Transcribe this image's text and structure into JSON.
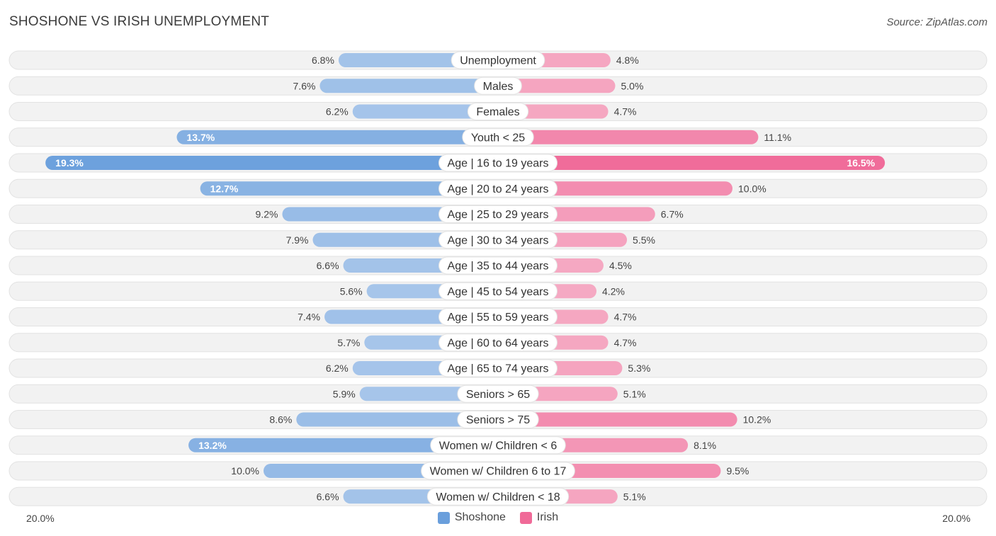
{
  "title": "SHOSHONE VS IRISH UNEMPLOYMENT",
  "source": "Source: ZipAtlas.com",
  "colors": {
    "shoshone": "#6a9fdc",
    "shoshone_light": "#a6c5ea",
    "irish": "#f06a98",
    "irish_light": "#f5a9c3"
  },
  "chart_data": {
    "type": "bar",
    "orientation": "horizontal-diverging",
    "title": "SHOSHONE VS IRISH UNEMPLOYMENT",
    "categories": [
      "Unemployment",
      "Males",
      "Females",
      "Youth < 25",
      "Age | 16 to 19 years",
      "Age | 20 to 24 years",
      "Age | 25 to 29 years",
      "Age | 30 to 34 years",
      "Age | 35 to 44 years",
      "Age | 45 to 54 years",
      "Age | 55 to 59 years",
      "Age | 60 to 64 years",
      "Age | 65 to 74 years",
      "Seniors > 65",
      "Seniors > 75",
      "Women w/ Children < 6",
      "Women w/ Children 6 to 17",
      "Women w/ Children < 18"
    ],
    "series": [
      {
        "name": "Shoshone",
        "values": [
          6.8,
          7.6,
          6.2,
          13.7,
          19.3,
          12.7,
          9.2,
          7.9,
          6.6,
          5.6,
          7.4,
          5.7,
          6.2,
          5.9,
          8.6,
          13.2,
          10.0,
          6.6
        ]
      },
      {
        "name": "Irish",
        "values": [
          4.8,
          5.0,
          4.7,
          11.1,
          16.5,
          10.0,
          6.7,
          5.5,
          4.5,
          4.2,
          4.7,
          4.7,
          5.3,
          5.1,
          10.2,
          8.1,
          9.5,
          5.1
        ]
      }
    ],
    "xlim": [
      0,
      20
    ],
    "axis_labels": {
      "left": "20.0%",
      "right": "20.0%"
    },
    "value_suffix": "%",
    "legend": [
      "Shoshone",
      "Irish"
    ],
    "legend_position": "bottom-center"
  }
}
